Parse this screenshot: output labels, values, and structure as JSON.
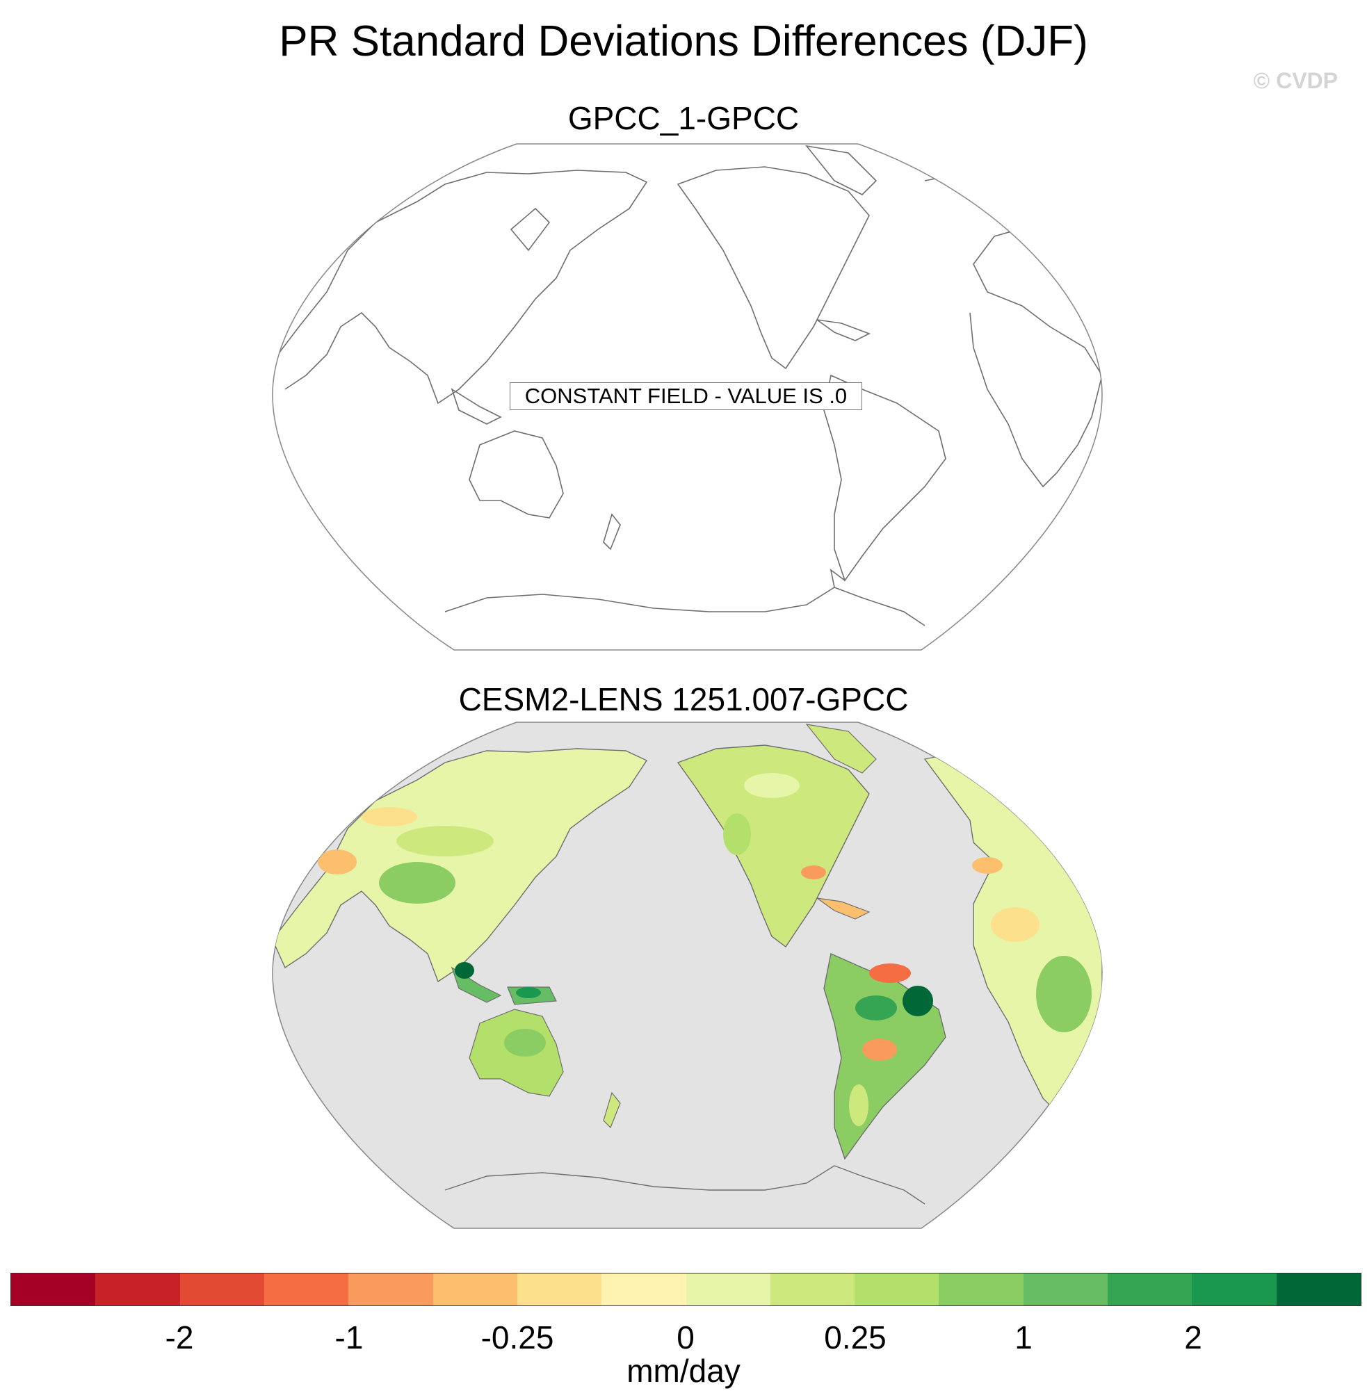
{
  "title": "PR Standard Deviations Differences (DJF)",
  "credit": "© CVDP",
  "panels": [
    {
      "subtitle": "GPCC_1-GPCC",
      "note": "CONSTANT FIELD - VALUE IS .0",
      "fill_color": "#ffffff",
      "land_fill": "#ffffff"
    },
    {
      "subtitle": "CESM2-LENS 1251.007-GPCC",
      "note": "",
      "fill_color": "#e3e3e3",
      "land_fill": "#e6f5a8"
    }
  ],
  "colorbar": {
    "colors": [
      "#a50026",
      "#c82229",
      "#e34a33",
      "#f46d43",
      "#f89b5d",
      "#fcbf6e",
      "#fde08b",
      "#fef3b0",
      "#e6f5a8",
      "#cde97e",
      "#b3df6b",
      "#8ccd63",
      "#66bd63",
      "#35a453",
      "#1a9850",
      "#006837"
    ],
    "tick_labels": [
      "-2",
      "-1",
      "-0.25",
      "0",
      "0.25",
      "1",
      "2"
    ],
    "units": "mm/day"
  },
  "chart_data": {
    "type": "heatmap",
    "title": "PR Standard Deviations Differences (DJF)",
    "panels": [
      "GPCC_1-GPCC",
      "CESM2-LENS 1251.007-GPCC"
    ],
    "colorbar_ticks": [
      -2,
      -1,
      -0.25,
      0,
      0.25,
      1,
      2
    ],
    "units": "mm/day"
  }
}
